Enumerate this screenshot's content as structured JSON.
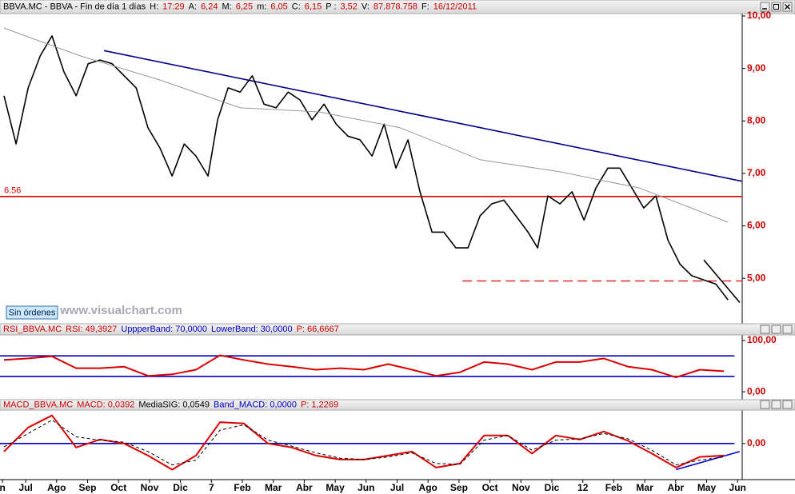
{
  "button": "Sin órdenes",
  "watermark": "www.visualchart.com",
  "chart_data": [
    {
      "type": "line",
      "header": [
        {
          "text": "BBVA.MC - BBVA - Fin de día 1 días",
          "color": "#000000"
        },
        {
          "text": "H:",
          "color": "#000000"
        },
        {
          "text": "17:29",
          "color": "#cc0000"
        },
        {
          "text": "A:",
          "color": "#000000"
        },
        {
          "text": "6,24",
          "color": "#cc0000"
        },
        {
          "text": "M:",
          "color": "#000000"
        },
        {
          "text": "6,25",
          "color": "#cc0000"
        },
        {
          "text": "m:",
          "color": "#000000"
        },
        {
          "text": "6,05",
          "color": "#cc0000"
        },
        {
          "text": "C:",
          "color": "#000000"
        },
        {
          "text": "6,15",
          "color": "#cc0000"
        },
        {
          "text": "P :",
          "color": "#000000"
        },
        {
          "text": "3,52",
          "color": "#cc0000"
        },
        {
          "text": "V:",
          "color": "#000000"
        },
        {
          "text": "87.878.758",
          "color": "#cc0000"
        },
        {
          "text": "F:",
          "color": "#000000"
        },
        {
          "text": "16/12/2011",
          "color": "#cc0000"
        }
      ],
      "xlim": [
        0.17,
        24.15
      ],
      "ylim": [
        4.15,
        10.03
      ],
      "yticks": [
        {
          "value": 5,
          "label": "5,00"
        },
        {
          "value": 6,
          "label": "6,00"
        },
        {
          "value": 7,
          "label": "7,00"
        },
        {
          "value": 8,
          "label": "8,00"
        },
        {
          "value": 9,
          "label": "9,00"
        },
        {
          "value": 10,
          "label": "10,00"
        }
      ],
      "x": [
        0.3,
        0.69,
        1.08,
        1.47,
        1.85,
        2.24,
        2.63,
        3.02,
        3.4,
        3.79,
        4.18,
        4.57,
        4.95,
        5.34,
        5.73,
        6.12,
        6.5,
        6.89,
        7.2,
        7.54,
        7.93,
        8.32,
        8.7,
        9.09,
        9.48,
        9.86,
        10.25,
        10.64,
        11.03,
        11.41,
        11.8,
        12.19,
        12.58,
        12.96,
        13.35,
        13.74,
        14.13,
        14.51,
        14.9,
        15.29,
        15.68,
        16.06,
        16.45,
        16.84,
        17.23,
        17.54,
        17.87,
        18.26,
        18.65,
        19.04,
        19.42,
        19.81,
        20.2,
        20.59,
        20.97,
        21.36,
        21.75,
        22.14,
        22.52,
        22.91,
        23.3,
        23.69
      ],
      "series": [
        {
          "color": "#000000",
          "width": 1.6,
          "values": [
            8.48,
            7.56,
            8.63,
            9.24,
            9.62,
            8.93,
            8.48,
            9.09,
            9.16,
            9.09,
            8.86,
            8.63,
            7.87,
            7.48,
            6.95,
            7.56,
            7.33,
            6.95,
            8.02,
            8.63,
            8.55,
            8.86,
            8.32,
            8.25,
            8.55,
            8.4,
            8.02,
            8.32,
            7.94,
            7.71,
            7.64,
            7.33,
            7.94,
            7.1,
            7.64,
            6.65,
            5.88,
            5.88,
            5.58,
            5.58,
            6.19,
            6.42,
            6.49,
            6.19,
            5.88,
            5.58,
            6.57,
            6.42,
            6.65,
            6.11,
            6.72,
            7.1,
            7.1,
            6.72,
            6.34,
            6.57,
            5.73,
            5.27,
            5.05,
            4.97,
            4.89,
            4.59
          ]
        },
        {
          "color": "#999999",
          "width": 1,
          "x": [
            0.3,
            2.76,
            5.34,
            7.93,
            10.51,
            13.09,
            15.68,
            18.26,
            20.84,
            23.69
          ],
          "values": [
            9.77,
            9.24,
            8.78,
            8.25,
            8.17,
            7.87,
            7.26,
            7.03,
            6.72,
            6.07
          ]
        }
      ],
      "lines": [
        {
          "color": "#00008b",
          "dash": false,
          "x": [
            3.53,
            24.15
          ],
          "values": [
            9.34,
            6.85
          ]
        },
        {
          "color": "#dd0000",
          "dash": false,
          "label": "6.56",
          "x": [
            0.17,
            24.15
          ],
          "values": [
            6.56,
            6.56
          ]
        },
        {
          "color": "#dd0000",
          "dash": true,
          "x": [
            15.11,
            24.15
          ],
          "values": [
            4.95,
            4.95
          ]
        },
        {
          "color": "#000000",
          "dash": false,
          "x": [
            22.91,
            24.07
          ],
          "values": [
            5.35,
            4.54
          ]
        }
      ]
    },
    {
      "type": "line",
      "header": [
        {
          "text": "RSI_BBVA.MC",
          "color": "#cc0000"
        },
        {
          "text": "RSI: 49,3927",
          "color": "#cc0000"
        },
        {
          "text": "UppperBand: 70,0000",
          "color": "#0000cc"
        },
        {
          "text": "LowerBand: 30,0000",
          "color": "#0000cc"
        },
        {
          "text": "P: 66,6667",
          "color": "#cc0000"
        }
      ],
      "xlim": [
        0.17,
        24.15
      ],
      "ylim": [
        -15.4,
        110.8
      ],
      "yticks": [
        {
          "value": 0,
          "label": "0,00"
        },
        {
          "value": 100,
          "label": "100,00"
        }
      ],
      "x": [
        0.3,
        1.08,
        1.85,
        2.63,
        3.4,
        4.18,
        4.95,
        5.73,
        6.5,
        7.28,
        8.05,
        8.83,
        9.6,
        10.38,
        11.16,
        11.93,
        12.71,
        13.48,
        14.26,
        15.03,
        15.81,
        16.58,
        17.36,
        18.13,
        18.91,
        19.68,
        20.46,
        21.23,
        22.01,
        22.78,
        23.56
      ],
      "series": [
        {
          "color": "#dd0000",
          "width": 2,
          "values": [
            62,
            65,
            69,
            46,
            46,
            49,
            31,
            34,
            43,
            71,
            62,
            54,
            49,
            43,
            46,
            43,
            54,
            43,
            31,
            38,
            58,
            54,
            43,
            58,
            58,
            65,
            49,
            43,
            28,
            43,
            40
          ]
        }
      ],
      "lines": [
        {
          "color": "#0000cc",
          "dash": false,
          "x": [
            0.17,
            23.9
          ],
          "values": [
            70,
            70
          ]
        },
        {
          "color": "#0000cc",
          "dash": false,
          "x": [
            0.17,
            23.9
          ],
          "values": [
            30,
            30
          ]
        }
      ]
    },
    {
      "type": "line",
      "header": [
        {
          "text": "MACD_BBVA.MC",
          "color": "#cc0000"
        },
        {
          "text": "MACD: 0,0392",
          "color": "#cc0000"
        },
        {
          "text": "MediaSIG: 0,0549",
          "color": "#000000"
        },
        {
          "text": "Band_MACD: 0,0000",
          "color": "#0000cc"
        },
        {
          "text": "P: 1,2269",
          "color": "#cc0000"
        }
      ],
      "xlim": [
        0.17,
        24.15
      ],
      "ylim": [
        -0.54,
        0.5
      ],
      "yticks": [
        {
          "value": 0,
          "label": "0,00"
        }
      ],
      "xticks": [
        {
          "value": 0.25,
          "label": "n"
        },
        {
          "value": 1,
          "label": "Jul"
        },
        {
          "value": 2,
          "label": "Ago"
        },
        {
          "value": 3,
          "label": "Sep"
        },
        {
          "value": 4,
          "label": "Oct"
        },
        {
          "value": 5,
          "label": "Nov"
        },
        {
          "value": 6,
          "label": "Dic"
        },
        7,
        {
          "value": 8,
          "label": "Feb"
        },
        {
          "value": 9,
          "label": "Mar"
        },
        {
          "value": 10,
          "label": "Abr"
        },
        {
          "value": 11,
          "label": "May"
        },
        {
          "value": 12,
          "label": "Jun"
        },
        {
          "value": 13,
          "label": "Jul"
        },
        {
          "value": 14,
          "label": "Ago"
        },
        {
          "value": 15,
          "label": "Sep"
        },
        {
          "value": 16,
          "label": "Oct"
        },
        {
          "value": 17,
          "label": "Nov"
        },
        {
          "value": 18,
          "label": "Dic"
        },
        {
          "value": 19,
          "label": "12"
        },
        {
          "value": 20,
          "label": "Feb"
        },
        {
          "value": 21,
          "label": "Mar"
        },
        {
          "value": 22,
          "label": "Abr"
        },
        {
          "value": 23,
          "label": "May"
        },
        {
          "value": 24,
          "label": "Jun"
        }
      ],
      "x": [
        0.3,
        1.08,
        1.85,
        2.63,
        3.4,
        4.18,
        4.95,
        5.73,
        6.5,
        7.28,
        8.05,
        8.83,
        9.6,
        10.38,
        11.16,
        11.93,
        12.71,
        13.48,
        14.26,
        15.03,
        15.81,
        16.58,
        17.36,
        18.13,
        18.91,
        19.68,
        20.46,
        21.23,
        22.01,
        22.78,
        23.56
      ],
      "series": [
        {
          "color": "#dd0000",
          "width": 2,
          "values": [
            -0.12,
            0.24,
            0.42,
            -0.06,
            0.06,
            0.0,
            -0.18,
            -0.39,
            -0.18,
            0.32,
            0.3,
            0.0,
            -0.06,
            -0.18,
            -0.24,
            -0.24,
            -0.18,
            -0.12,
            -0.36,
            -0.3,
            0.12,
            0.12,
            -0.15,
            0.12,
            0.06,
            0.18,
            0.04,
            -0.15,
            -0.36,
            -0.2,
            -0.18
          ]
        },
        {
          "color": "#000000",
          "width": 1,
          "dash": true,
          "values": [
            -0.05,
            0.15,
            0.35,
            0.1,
            0.05,
            0.02,
            -0.12,
            -0.32,
            -0.25,
            0.2,
            0.28,
            0.05,
            -0.04,
            -0.14,
            -0.22,
            -0.24,
            -0.2,
            -0.14,
            -0.3,
            -0.31,
            0.05,
            0.12,
            -0.1,
            0.05,
            0.07,
            0.15,
            0.07,
            -0.1,
            -0.32,
            -0.25,
            -0.2
          ]
        }
      ],
      "lines": [
        {
          "color": "#0000cc",
          "dash": false,
          "x": [
            0.17,
            23.9
          ],
          "values": [
            0,
            0
          ]
        },
        {
          "color": "#0000cc",
          "dash": false,
          "x": [
            22.01,
            24.07
          ],
          "values": [
            -0.39,
            -0.12
          ]
        }
      ]
    }
  ]
}
